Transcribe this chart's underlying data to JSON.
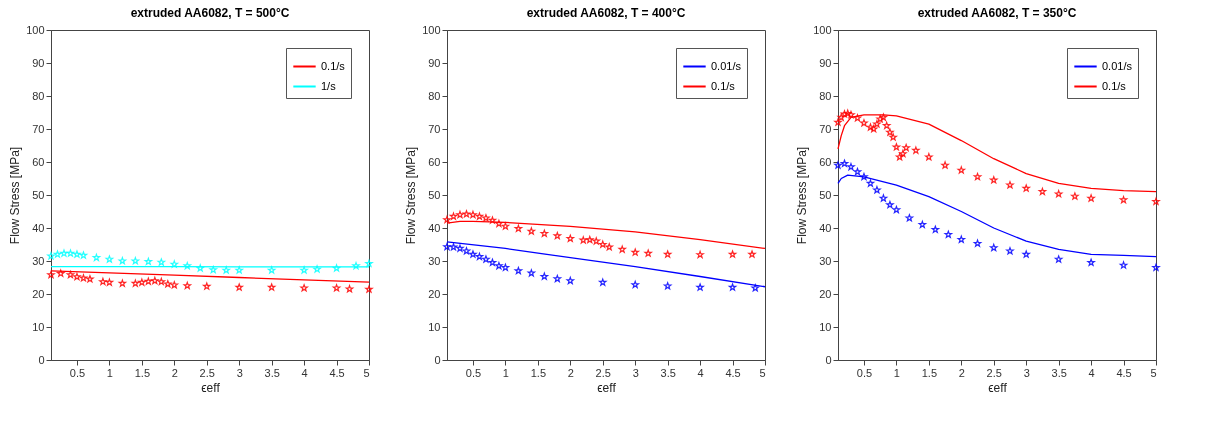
{
  "chart_data": [
    {
      "type": "line",
      "title": "extruded AA6082, T = 500°C",
      "xlabel": "ϵeff",
      "ylabel": "Flow Stress [MPa]",
      "xlim": [
        0.1,
        5
      ],
      "ylim": [
        0,
        100
      ],
      "xticks": [
        0.5,
        1,
        1.5,
        2,
        2.5,
        3,
        3.5,
        4,
        4.5,
        5
      ],
      "yticks": [
        0,
        10,
        20,
        30,
        40,
        50,
        60,
        70,
        80,
        90,
        100
      ],
      "legend": "top right",
      "series": [
        {
          "type": "scatter",
          "marker": "star",
          "color": "#00ffff",
          "x": [
            0.1,
            0.2,
            0.3,
            0.4,
            0.5,
            0.6,
            0.8,
            1.0,
            1.2,
            1.4,
            1.6,
            1.8,
            2.0,
            2.2,
            2.4,
            2.6,
            2.8,
            3.0,
            3.5,
            4.0,
            4.2,
            4.5,
            4.8,
            5.0
          ],
          "values": [
            31.5,
            32,
            32.3,
            32.3,
            32,
            31.7,
            31,
            30.5,
            30,
            30,
            29.8,
            29.6,
            29,
            28.5,
            27.8,
            27.3,
            27.2,
            27.2,
            27.2,
            27.2,
            27.5,
            27.8,
            28.5,
            29.2
          ]
        },
        {
          "type": "scatter",
          "marker": "star",
          "color": "#ff0000",
          "x": [
            0.1,
            0.25,
            0.4,
            0.5,
            0.6,
            0.7,
            0.9,
            1.0,
            1.2,
            1.4,
            1.5,
            1.6,
            1.7,
            1.8,
            1.9,
            2.0,
            2.2,
            2.5,
            3.0,
            3.5,
            4.0,
            4.5,
            4.7,
            5.0
          ],
          "values": [
            25.8,
            26.2,
            25.8,
            25.2,
            24.8,
            24.5,
            23.7,
            23.5,
            23.2,
            23.2,
            23.5,
            23.8,
            24,
            23.7,
            23,
            22.7,
            22.5,
            22.3,
            22,
            22,
            21.8,
            21.8,
            21.5,
            21.4
          ]
        },
        {
          "name": "0.1/s",
          "color": "#ff0000",
          "x": [
            0.1,
            1,
            2,
            3,
            4,
            5
          ],
          "values": [
            27,
            26.4,
            25.7,
            25,
            24.3,
            23.6
          ]
        },
        {
          "name": "1/s",
          "color": "#00ffff",
          "x": [
            0.1,
            1,
            2,
            3,
            4,
            5
          ],
          "values": [
            28.3,
            28.3,
            28.3,
            28.2,
            28.2,
            28.2
          ]
        }
      ]
    },
    {
      "type": "line",
      "title": "extruded AA6082, T = 400°C",
      "xlabel": "ϵeff",
      "ylabel": "Flow Stress [MPa]",
      "xlim": [
        0.1,
        5
      ],
      "ylim": [
        0,
        100
      ],
      "xticks": [
        0.5,
        1,
        1.5,
        2,
        2.5,
        3,
        3.5,
        4,
        4.5,
        5
      ],
      "yticks": [
        0,
        10,
        20,
        30,
        40,
        50,
        60,
        70,
        80,
        90,
        100
      ],
      "legend": "top right",
      "series": [
        {
          "type": "scatter",
          "marker": "star",
          "color": "#ff0000",
          "x": [
            0.1,
            0.2,
            0.3,
            0.4,
            0.5,
            0.6,
            0.7,
            0.8,
            0.9,
            1.0,
            1.2,
            1.4,
            1.6,
            1.8,
            2.0,
            2.2,
            2.3,
            2.4,
            2.5,
            2.6,
            2.8,
            3.0,
            3.2,
            3.5,
            4.0,
            4.5,
            4.8
          ],
          "values": [
            42.5,
            43.5,
            44,
            44.2,
            44,
            43.5,
            43,
            42.3,
            41.3,
            40.5,
            39.8,
            39,
            38.3,
            37.6,
            36.8,
            36.3,
            36.4,
            36,
            35,
            34.2,
            33.5,
            32.6,
            32.3,
            32,
            31.9,
            32,
            32
          ]
        },
        {
          "type": "scatter",
          "marker": "star",
          "color": "#0000ff",
          "x": [
            0.1,
            0.2,
            0.3,
            0.4,
            0.5,
            0.6,
            0.7,
            0.8,
            0.9,
            1.0,
            1.2,
            1.4,
            1.6,
            1.8,
            2.0,
            2.5,
            3.0,
            3.5,
            4.0,
            4.5,
            4.85
          ],
          "values": [
            34.3,
            34.2,
            33.8,
            33,
            32,
            31.3,
            30.5,
            29.5,
            28.5,
            28,
            27,
            26.3,
            25.3,
            24.6,
            24,
            23.5,
            22.8,
            22.4,
            22,
            22,
            21.8
          ]
        },
        {
          "name": "0.01/s",
          "color": "#0000ff",
          "x": [
            0.1,
            1,
            2,
            3,
            4,
            5
          ],
          "values": [
            35.8,
            33.8,
            31,
            28.3,
            25.3,
            22.2
          ]
        },
        {
          "name": "0.1/s",
          "color": "#ff0000",
          "x": [
            0.1,
            0.3,
            0.5,
            1,
            2,
            3,
            4,
            5
          ],
          "values": [
            41.5,
            42,
            42,
            41.7,
            40.5,
            38.8,
            36.5,
            33.8
          ]
        }
      ]
    },
    {
      "type": "line",
      "title": "extruded AA6082, T = 350°C",
      "xlabel": "ϵeff",
      "ylabel": "Flow Stress [MPa]",
      "xlim": [
        0.1,
        5
      ],
      "ylim": [
        0,
        100
      ],
      "xticks": [
        0.5,
        1,
        1.5,
        2,
        2.5,
        3,
        3.5,
        4,
        4.5,
        5
      ],
      "yticks": [
        0,
        10,
        20,
        30,
        40,
        50,
        60,
        70,
        80,
        90,
        100
      ],
      "legend": "top right",
      "series": [
        {
          "type": "scatter",
          "marker": "star",
          "color": "#ff0000",
          "x": [
            0.1,
            0.15,
            0.2,
            0.25,
            0.3,
            0.4,
            0.5,
            0.6,
            0.65,
            0.7,
            0.75,
            0.8,
            0.85,
            0.9,
            0.95,
            1.0,
            1.05,
            1.1,
            1.15,
            1.3,
            1.5,
            1.75,
            2.0,
            2.25,
            2.5,
            2.75,
            3.0,
            3.25,
            3.5,
            3.75,
            4.0,
            4.5,
            5.0
          ],
          "values": [
            72,
            73.5,
            74.5,
            74.7,
            74.3,
            73.3,
            71.8,
            70.5,
            70,
            71.5,
            73,
            73.5,
            71,
            69,
            67.5,
            64.5,
            61.5,
            62.5,
            64.3,
            63.5,
            61.5,
            59,
            57.5,
            55.5,
            54.5,
            53,
            52,
            51,
            50.3,
            49.6,
            49,
            48.5,
            48
          ]
        },
        {
          "type": "scatter",
          "marker": "star",
          "color": "#0000ff",
          "x": [
            0.1,
            0.2,
            0.3,
            0.4,
            0.5,
            0.6,
            0.7,
            0.8,
            0.9,
            1.0,
            1.2,
            1.4,
            1.6,
            1.8,
            2.0,
            2.25,
            2.5,
            2.75,
            3.0,
            3.5,
            4.0,
            4.5,
            5.0
          ],
          "values": [
            59,
            59.5,
            58.5,
            57,
            55.5,
            53.5,
            51.5,
            49,
            47,
            45.5,
            43,
            41,
            39.5,
            38,
            36.5,
            35.3,
            34,
            33,
            32,
            30.5,
            29.5,
            28.7,
            28
          ]
        },
        {
          "name": "0.01/s",
          "color": "#0000ff",
          "x": [
            0.1,
            0.15,
            0.25,
            0.5,
            1,
            1.5,
            2,
            2.5,
            3,
            3.5,
            4,
            4.5,
            5
          ],
          "values": [
            53.5,
            55,
            56,
            55.5,
            53,
            49.5,
            45,
            40,
            36,
            33.5,
            32,
            31.7,
            31.3
          ]
        },
        {
          "name": "0.1/s",
          "color": "#ff0000",
          "x": [
            0.1,
            0.15,
            0.2,
            0.3,
            0.5,
            0.8,
            1,
            1.5,
            2,
            2.5,
            3,
            3.5,
            4,
            4.5,
            5
          ],
          "values": [
            64,
            68,
            71,
            73.5,
            74.3,
            74.3,
            74,
            71.5,
            66.5,
            61,
            56.5,
            53.5,
            52,
            51.3,
            51
          ]
        }
      ]
    }
  ]
}
